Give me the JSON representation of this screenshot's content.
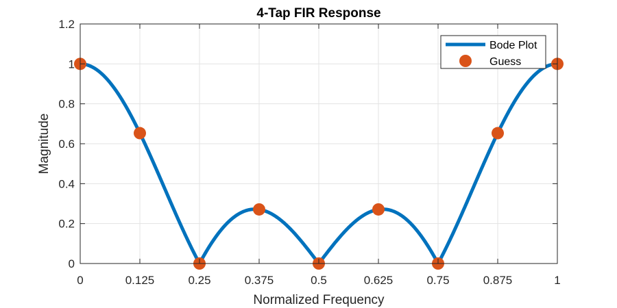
{
  "chart_data": {
    "type": "line",
    "title": "4-Tap FIR Response",
    "xlabel": "Normalized Frequency",
    "ylabel": "Magnitude",
    "xlim": [
      0,
      1
    ],
    "ylim": [
      0,
      1.2
    ],
    "grid": true,
    "legend_position": "top-right",
    "x_ticks": [
      0,
      0.125,
      0.25,
      0.375,
      0.5,
      0.625,
      0.75,
      0.875,
      1
    ],
    "x_tick_labels": [
      "0",
      "0.125",
      "0.25",
      "0.375",
      "0.5",
      "0.625",
      "0.75",
      "0.875",
      "1"
    ],
    "y_ticks": [
      0,
      0.2,
      0.4,
      0.6,
      0.8,
      1,
      1.2
    ],
    "y_tick_labels": [
      "0",
      "0.2",
      "0.4",
      "0.6",
      "0.8",
      "1",
      "1.2"
    ],
    "series": [
      {
        "name": "Bode Plot",
        "kind": "line",
        "color": "#0072BD",
        "function": "abs(cos(2*pi*x)*cos(pi*x))"
      },
      {
        "name": "Guess",
        "kind": "scatter",
        "color": "#D95319",
        "x": [
          0,
          0.125,
          0.25,
          0.375,
          0.5,
          0.625,
          0.75,
          0.875,
          1
        ],
        "y": [
          1,
          0.653,
          0,
          0.271,
          0,
          0.271,
          0,
          0.653,
          1
        ]
      }
    ]
  }
}
